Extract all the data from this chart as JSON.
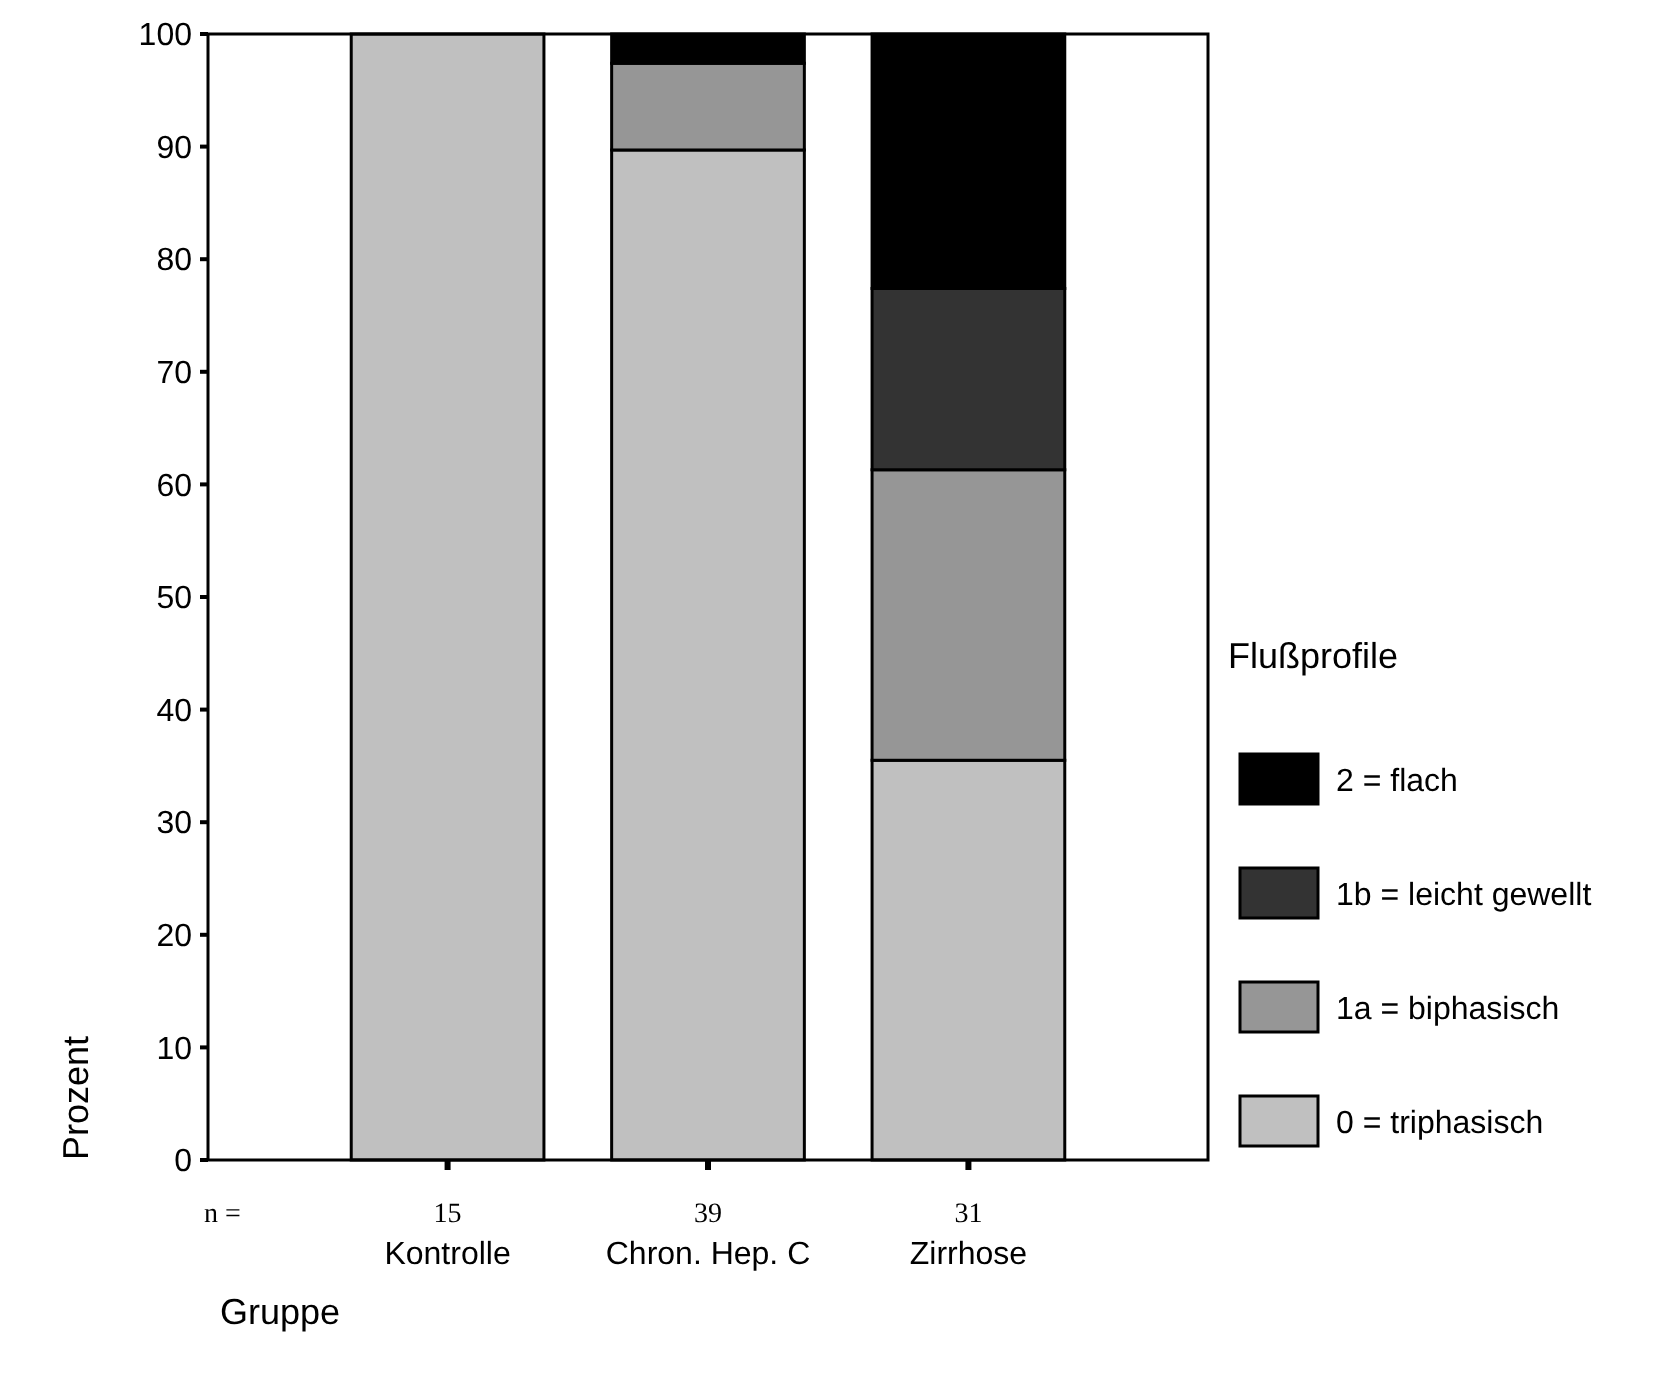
{
  "chart_data": {
    "type": "bar",
    "stacked": true,
    "xlabel": "Gruppe",
    "ylabel": "Prozent",
    "legend_title": "Flußprofile",
    "legend": "right",
    "categories": [
      "Kontrolle",
      "Chron. Hep. C",
      "Zirrhose"
    ],
    "series": [
      {
        "name": "0 = triphasisch",
        "color": "#c0c0c0",
        "values": [
          100,
          89.7,
          35.5
        ]
      },
      {
        "name": "1a = biphasisch",
        "color": "#969696",
        "values": [
          0,
          7.7,
          25.8
        ]
      },
      {
        "name": "1b = leicht gewellt",
        "color": "#333333",
        "values": [
          0,
          0,
          16.1
        ]
      },
      {
        "name": "2 = flach",
        "color": "#000000",
        "values": [
          0,
          2.6,
          22.6
        ]
      }
    ],
    "ylim": [
      0,
      100
    ],
    "yticks": [
      0,
      10,
      20,
      30,
      40,
      50,
      60,
      70,
      80,
      90,
      100
    ],
    "annotations": [
      "n =",
      "15",
      "39",
      "31"
    ]
  }
}
